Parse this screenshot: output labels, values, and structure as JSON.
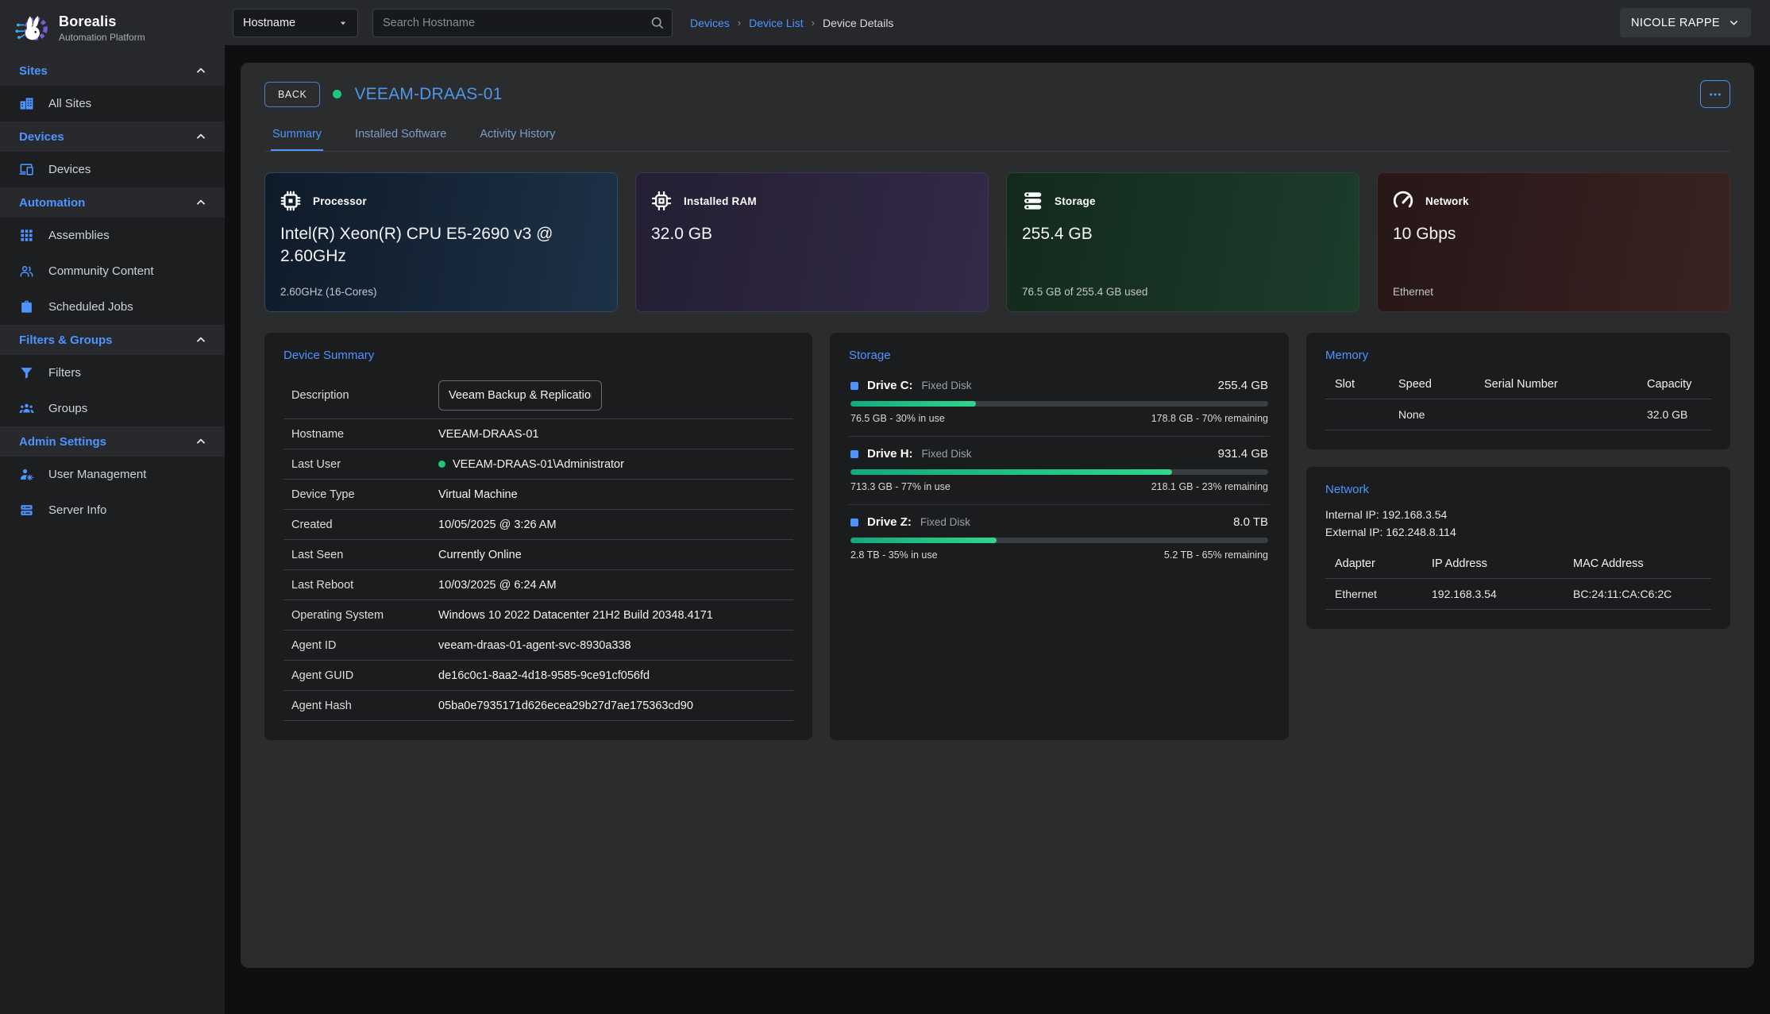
{
  "brand": {
    "name": "Borealis",
    "tagline": "Automation Platform"
  },
  "topbar": {
    "search_category": "Hostname",
    "search_placeholder": "Search Hostname",
    "breadcrumbs": [
      {
        "label": "Devices",
        "link": true
      },
      {
        "label": "Device List",
        "link": true
      },
      {
        "label": "Device Details",
        "link": false
      }
    ],
    "user": "NICOLE RAPPE"
  },
  "sidebar": {
    "sections": [
      {
        "label": "Sites",
        "items": [
          {
            "label": "All Sites",
            "icon": "building-icon"
          }
        ]
      },
      {
        "label": "Devices",
        "items": [
          {
            "label": "Devices",
            "icon": "devices-icon"
          }
        ]
      },
      {
        "label": "Automation",
        "items": [
          {
            "label": "Assemblies",
            "icon": "grid-icon"
          },
          {
            "label": "Community Content",
            "icon": "people-icon"
          },
          {
            "label": "Scheduled Jobs",
            "icon": "briefcase-icon"
          }
        ]
      },
      {
        "label": "Filters & Groups",
        "items": [
          {
            "label": "Filters",
            "icon": "filter-icon"
          },
          {
            "label": "Groups",
            "icon": "groups-icon"
          }
        ]
      },
      {
        "label": "Admin Settings",
        "items": [
          {
            "label": "User Management",
            "icon": "user-gear-icon"
          },
          {
            "label": "Server Info",
            "icon": "server-icon"
          }
        ]
      }
    ]
  },
  "device": {
    "back_label": "BACK",
    "name": "VEEAM-DRAAS-01",
    "tabs": [
      {
        "label": "Summary",
        "active": true
      },
      {
        "label": "Installed Software",
        "active": false
      },
      {
        "label": "Activity History",
        "active": false
      }
    ]
  },
  "stat_cards": [
    {
      "icon": "cpu-icon",
      "title": "Processor",
      "value": "Intel(R) Xeon(R) CPU E5-2690 v3 @ 2.60GHz",
      "subtext": "2.60GHz (16-Cores)",
      "theme": "blue"
    },
    {
      "icon": "ram-icon",
      "title": "Installed RAM",
      "value": "32.0 GB",
      "subtext": "",
      "theme": "purple"
    },
    {
      "icon": "storage-icon",
      "title": "Storage",
      "value": "255.4 GB",
      "subtext": "76.5 GB of 255.4 GB used",
      "theme": "green"
    },
    {
      "icon": "gauge-icon",
      "title": "Network",
      "value": "10 Gbps",
      "subtext": "Ethernet",
      "theme": "red"
    }
  ],
  "device_summary": {
    "title": "Device Summary",
    "description": {
      "label": "Description",
      "value": "Veeam Backup & Replication"
    },
    "rows": [
      {
        "label": "Hostname",
        "value": "VEEAM-DRAAS-01",
        "status_dot": false
      },
      {
        "label": "Last User",
        "value": "VEEAM-DRAAS-01\\Administrator",
        "status_dot": true
      },
      {
        "label": "Device Type",
        "value": "Virtual Machine",
        "status_dot": false
      },
      {
        "label": "Created",
        "value": "10/05/2025 @ 3:26 AM",
        "status_dot": false
      },
      {
        "label": "Last Seen",
        "value": "Currently Online",
        "status_dot": false
      },
      {
        "label": "Last Reboot",
        "value": "10/03/2025 @ 6:24 AM",
        "status_dot": false
      },
      {
        "label": "Operating System",
        "value": "Windows 10 2022 Datacenter 21H2 Build 20348.4171",
        "status_dot": false
      },
      {
        "label": "Agent ID",
        "value": "veeam-draas-01-agent-svc-8930a338",
        "status_dot": false
      },
      {
        "label": "Agent GUID",
        "value": "de16c0c1-8aa2-4d18-9585-9ce91cf056fd",
        "status_dot": false
      },
      {
        "label": "Agent Hash",
        "value": "05ba0e7935171d626ecea29b27d7ae175363cd90",
        "status_dot": false
      }
    ]
  },
  "storage_panel": {
    "title": "Storage",
    "drives": [
      {
        "name": "Drive C:",
        "type": "Fixed Disk",
        "size": "255.4 GB",
        "used_pct": 30,
        "used_text": "76.5 GB - 30% in use",
        "remaining_text": "178.8 GB - 70% remaining"
      },
      {
        "name": "Drive H:",
        "type": "Fixed Disk",
        "size": "931.4 GB",
        "used_pct": 77,
        "used_text": "713.3 GB - 77% in use",
        "remaining_text": "218.1 GB - 23% remaining"
      },
      {
        "name": "Drive Z:",
        "type": "Fixed Disk",
        "size": "8.0 TB",
        "used_pct": 35,
        "used_text": "2.8 TB - 35% in use",
        "remaining_text": "5.2 TB - 65% remaining"
      }
    ]
  },
  "memory_panel": {
    "title": "Memory",
    "columns": [
      "Slot",
      "Speed",
      "Serial Number",
      "Capacity"
    ],
    "rows": [
      [
        "",
        "None",
        "",
        "32.0 GB"
      ]
    ]
  },
  "network_panel": {
    "title": "Network",
    "internal_ip": "Internal IP: 192.168.3.54",
    "external_ip": "External IP: 162.248.8.114",
    "columns": [
      "Adapter",
      "IP Address",
      "MAC Address"
    ],
    "rows": [
      [
        "Ethernet",
        "192.168.3.54",
        "BC:24:11:CA:C6:2C"
      ]
    ]
  },
  "colors": {
    "accent_blue": "#4d94ff",
    "title_blue": "#4f97e8",
    "status_green": "#1fc77c",
    "progress_start": "#12a97e",
    "progress_end": "#2fd68b"
  }
}
